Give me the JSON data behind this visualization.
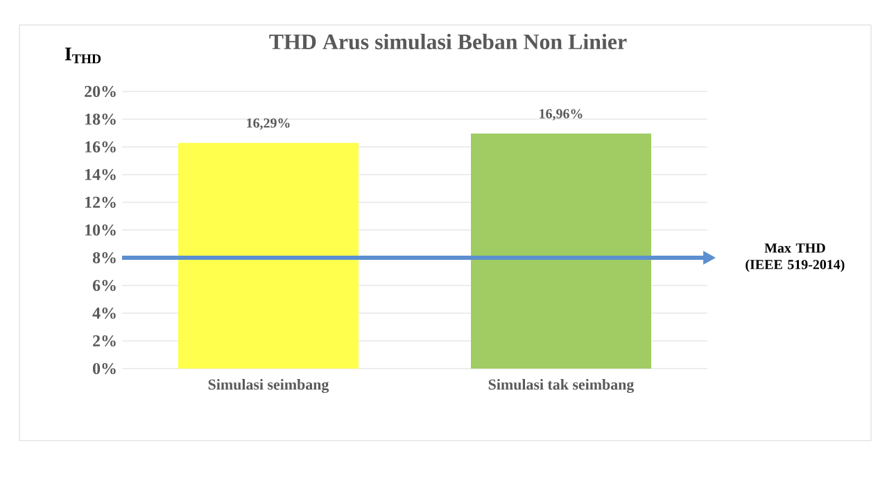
{
  "chart_data": {
    "type": "bar",
    "title": "THD Arus simulasi Beban Non Linier",
    "ylabel": "I$_{THD}$",
    "categories": [
      "Simulasi seimbang",
      "Simulasi tak seimbang"
    ],
    "values": [
      16.29,
      16.96
    ],
    "colors": [
      "#ffff4d",
      "#a0cc63"
    ],
    "value_labels": [
      "16,29%",
      "16,96%"
    ],
    "ylim": [
      0,
      20
    ],
    "yticks": [
      {
        "value": 0,
        "label": "0%"
      },
      {
        "value": 2,
        "label": "2%"
      },
      {
        "value": 4,
        "label": "4%"
      },
      {
        "value": 6,
        "label": "6%"
      },
      {
        "value": 8,
        "label": "8%"
      },
      {
        "value": 10,
        "label": "10%"
      },
      {
        "value": 12,
        "label": "12%"
      },
      {
        "value": 14,
        "label": "14%"
      },
      {
        "value": 16,
        "label": "16%"
      },
      {
        "value": 18,
        "label": "18%"
      },
      {
        "value": 20,
        "label": "20%"
      }
    ],
    "ref_lines": [
      {
        "axis": "y",
        "value": 8,
        "label": "Max THD (IEEE 519-2014)",
        "color": "#5b8fcf"
      }
    ],
    "grid": "y"
  }
}
